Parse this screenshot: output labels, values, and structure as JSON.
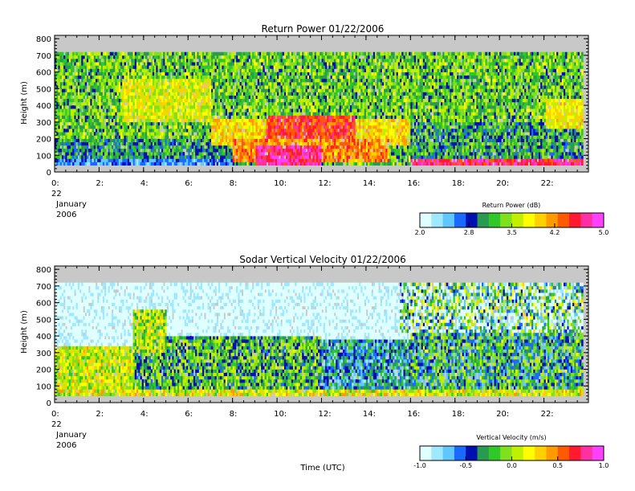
{
  "palette": [
    "#e0ffff",
    "#a0e8ff",
    "#60c8ff",
    "#1a6aff",
    "#0010b0",
    "#2a9a50",
    "#30c828",
    "#80e020",
    "#c0f000",
    "#ffff00",
    "#ffd000",
    "#ff9a00",
    "#ff5a00",
    "#ff1a30",
    "#ff30a0",
    "#ff40ff"
  ],
  "no_data_color": "#c8c8c8",
  "chart_data": [
    {
      "type": "heatmap",
      "title": "Return Power 01/22/2006",
      "ylabel": "Height (m)",
      "ylim": [
        0,
        820
      ],
      "yticks": [
        0,
        100,
        200,
        300,
        400,
        500,
        600,
        700,
        800
      ],
      "yticklabels": [
        "0",
        "100",
        "200",
        "300",
        "400",
        "500",
        "600",
        "700",
        "800"
      ],
      "xlim": [
        0,
        24
      ],
      "xticks": [
        0,
        2,
        4,
        6,
        8,
        10,
        12,
        14,
        16,
        18,
        20,
        22
      ],
      "xticklabels": [
        "0:",
        "2:",
        "4:",
        "6:",
        "8:",
        "10:",
        "12:",
        "14:",
        "16:",
        "18:",
        "20:",
        "22:"
      ],
      "date_label": [
        "22",
        "January",
        "2006"
      ],
      "x_units": "hour (UTC)",
      "valid_height_range": [
        40,
        720
      ],
      "colorbar": {
        "label": "Return Power (dB)",
        "range": [
          2.0,
          5.0
        ],
        "ticks": [
          2.0,
          2.8,
          3.5,
          4.2,
          5.0
        ],
        "ticklabels": [
          "2.0",
          "2.8",
          "3.5",
          "4.2",
          "5.0"
        ]
      },
      "regions": [
        {
          "x": [
            0,
            24
          ],
          "y": [
            40,
            720
          ],
          "value": 3.3,
          "jitter": 0.45
        },
        {
          "x": [
            0,
            8
          ],
          "y": [
            60,
            200
          ],
          "value": 3.05,
          "jitter": 0.4
        },
        {
          "x": [
            0,
            8
          ],
          "y": [
            40,
            80
          ],
          "value": 2.6,
          "jitter": 0.25
        },
        {
          "x": [
            3,
            7
          ],
          "y": [
            300,
            560
          ],
          "value": 3.7,
          "jitter": 0.35
        },
        {
          "x": [
            7,
            16
          ],
          "y": [
            150,
            320
          ],
          "value": 3.9,
          "jitter": 0.35
        },
        {
          "x": [
            9.5,
            13.5
          ],
          "y": [
            200,
            330
          ],
          "value": 4.45,
          "jitter": 0.3
        },
        {
          "x": [
            8,
            15
          ],
          "y": [
            60,
            200
          ],
          "value": 4.2,
          "jitter": 0.35
        },
        {
          "x": [
            9,
            12
          ],
          "y": [
            40,
            150
          ],
          "value": 4.7,
          "jitter": 0.3
        },
        {
          "x": [
            16,
            24
          ],
          "y": [
            60,
            300
          ],
          "value": 3.1,
          "jitter": 0.45
        },
        {
          "x": [
            22,
            24
          ],
          "y": [
            260,
            440
          ],
          "value": 3.8,
          "jitter": 0.3
        },
        {
          "x": [
            16,
            24
          ],
          "y": [
            40,
            70
          ],
          "value": 4.6,
          "jitter": 0.3
        }
      ]
    },
    {
      "type": "heatmap",
      "title": "Sodar Vertical Velocity 01/22/2006",
      "ylabel": "Height (m)",
      "xlabel": "Time (UTC)",
      "ylim": [
        0,
        820
      ],
      "yticks": [
        0,
        100,
        200,
        300,
        400,
        500,
        600,
        700,
        800
      ],
      "yticklabels": [
        "0",
        "100",
        "200",
        "300",
        "400",
        "500",
        "600",
        "700",
        "800"
      ],
      "xlim": [
        0,
        24
      ],
      "xticks": [
        0,
        2,
        4,
        6,
        8,
        10,
        12,
        14,
        16,
        18,
        20,
        22
      ],
      "xticklabels": [
        "0:",
        "2:",
        "4:",
        "6:",
        "8:",
        "10:",
        "12:",
        "14:",
        "16:",
        "18:",
        "20:",
        "22:"
      ],
      "date_label": [
        "22",
        "January",
        "2006"
      ],
      "x_units": "hour (UTC)",
      "valid_height_range": [
        40,
        720
      ],
      "colorbar": {
        "label": "Vertical Velocity (m/s)",
        "range": [
          -1.0,
          1.0
        ],
        "ticks": [
          -1.0,
          -0.5,
          0.0,
          0.5,
          1.0
        ],
        "ticklabels": [
          "-1.0",
          "-0.5",
          "0.0",
          "0.5",
          "1.0"
        ]
      },
      "regions": [
        {
          "x": [
            0,
            24
          ],
          "y": [
            40,
            720
          ],
          "value": -0.95,
          "jitter": 0.15
        },
        {
          "x": [
            0,
            3.5
          ],
          "y": [
            40,
            330
          ],
          "value": 0.1,
          "jitter": 0.3
        },
        {
          "x": [
            3.5,
            12
          ],
          "y": [
            40,
            400
          ],
          "value": -0.2,
          "jitter": 0.35
        },
        {
          "x": [
            3.5,
            5
          ],
          "y": [
            300,
            560
          ],
          "value": 0.0,
          "jitter": 0.35
        },
        {
          "x": [
            12,
            16
          ],
          "y": [
            40,
            380
          ],
          "value": -0.45,
          "jitter": 0.35
        },
        {
          "x": [
            16,
            24
          ],
          "y": [
            40,
            420
          ],
          "value": -0.3,
          "jitter": 0.45
        },
        {
          "x": [
            15.5,
            24
          ],
          "y": [
            420,
            720
          ],
          "value": -0.6,
          "jitter": 0.9
        },
        {
          "x": [
            0,
            24
          ],
          "y": [
            40,
            70
          ],
          "value": 0.15,
          "jitter": 0.3
        }
      ]
    }
  ]
}
